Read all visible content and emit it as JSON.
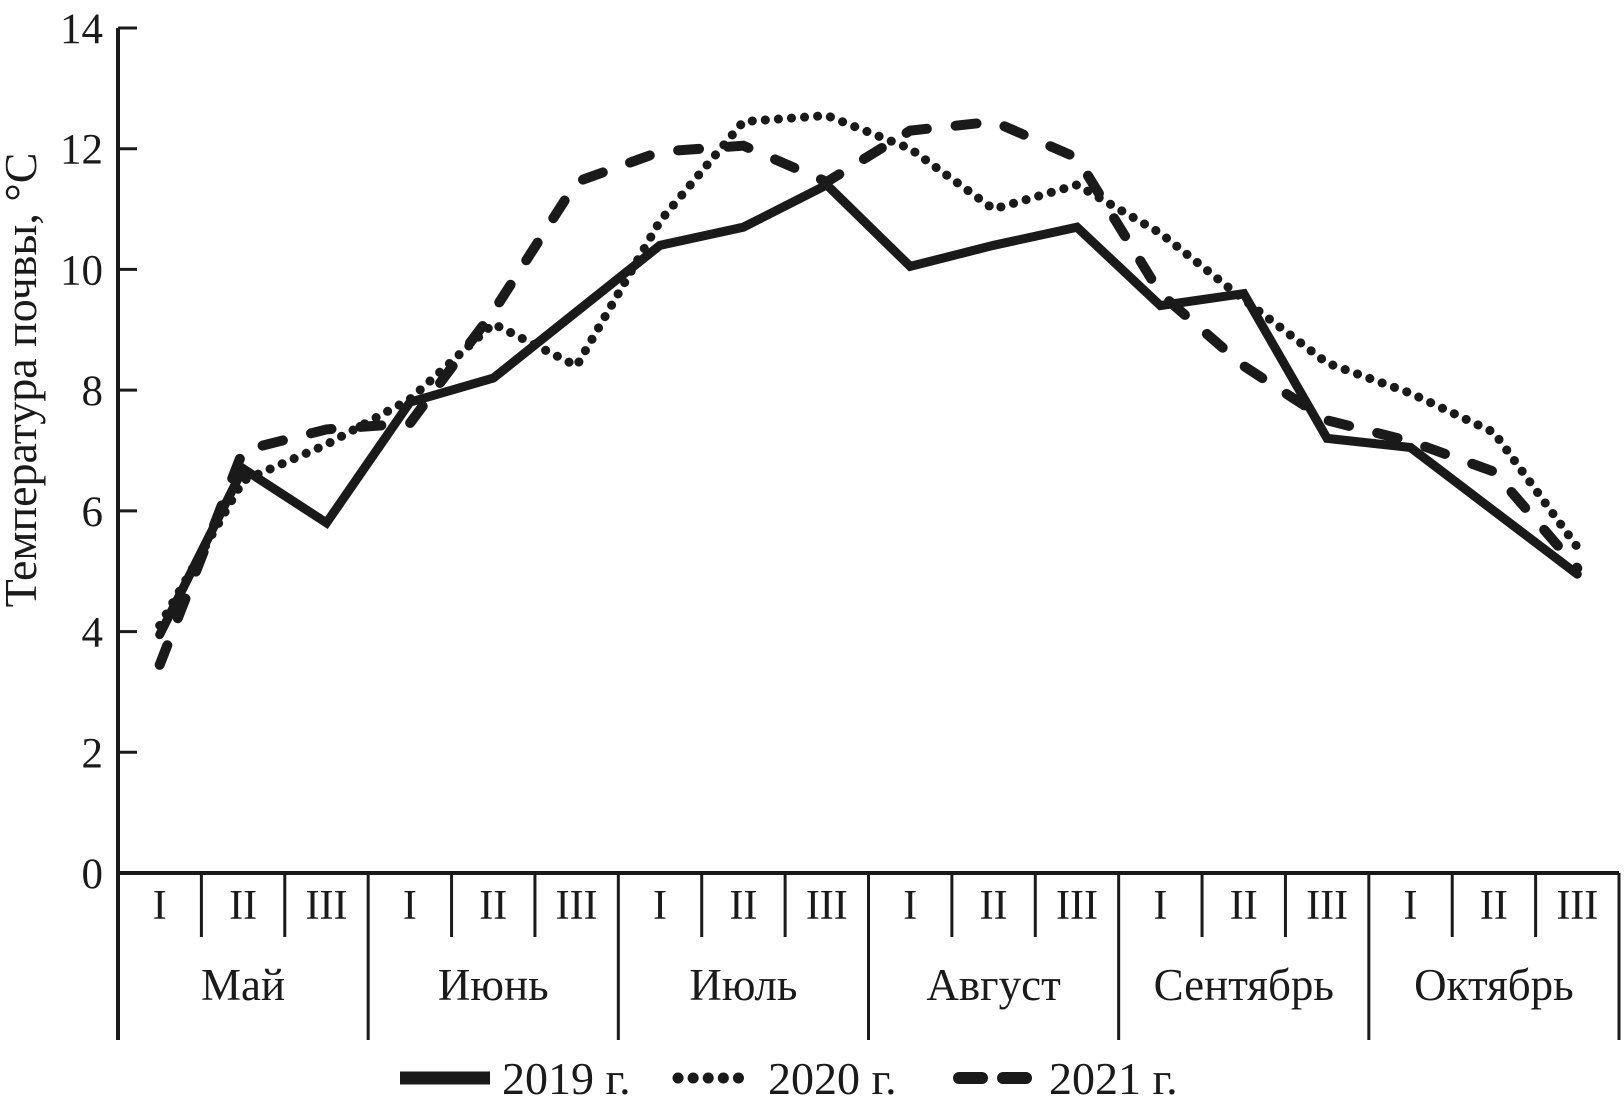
{
  "figure": {
    "background": "#ffffff",
    "ink_color": "#1a1a1a"
  },
  "legend": {
    "items": [
      {
        "label": "2019 г.",
        "style": "solid"
      },
      {
        "label": "2020 г.",
        "style": "dotted"
      },
      {
        "label": "2021 г.",
        "style": "dashed"
      }
    ]
  },
  "chart_data": {
    "type": "line",
    "title": "",
    "xlabel": "",
    "ylabel": "Температура почвы, °С",
    "ylim": [
      0,
      14
    ],
    "yticks": [
      0,
      2,
      4,
      6,
      8,
      10,
      12,
      14
    ],
    "grid": false,
    "legend_position": "bottom",
    "months": [
      "Май",
      "Июнь",
      "Июль",
      "Август",
      "Сентябрь",
      "Октябрь"
    ],
    "decades_per_month": [
      "I",
      "II",
      "III"
    ],
    "decade_row": [
      "I",
      "II",
      "III",
      "I",
      "II",
      "III",
      "I",
      "II",
      "III",
      "I",
      "II",
      "III",
      "I",
      "II",
      "III",
      "I",
      "II",
      "III"
    ],
    "categories": [
      "Май I",
      "Май II",
      "Май III",
      "Июнь I",
      "Июнь II",
      "Июнь III",
      "Июль I",
      "Июль II",
      "Июль III",
      "Август I",
      "Август II",
      "Август III",
      "Сентябрь I",
      "Сентябрь II",
      "Сентябрь III",
      "Октябрь I",
      "Октябрь II",
      "Октябрь III"
    ],
    "series": [
      {
        "name": "2019 г.",
        "style": "solid",
        "values": [
          3.95,
          6.7,
          5.8,
          7.8,
          8.2,
          9.3,
          10.4,
          10.7,
          11.4,
          10.05,
          10.4,
          10.7,
          9.4,
          9.6,
          7.2,
          7.05,
          6.0,
          4.95
        ]
      },
      {
        "name": "2020 г.",
        "style": "dotted",
        "values": [
          4.1,
          6.5,
          7.1,
          7.85,
          9.1,
          8.4,
          10.8,
          12.45,
          12.55,
          12.0,
          11.0,
          11.4,
          10.6,
          9.5,
          8.45,
          7.95,
          7.3,
          5.4
        ]
      },
      {
        "name": "2021 г.",
        "style": "dashed",
        "values": [
          3.45,
          7.0,
          7.35,
          7.45,
          9.3,
          11.45,
          11.95,
          12.05,
          11.45,
          12.3,
          12.45,
          11.85,
          9.6,
          8.4,
          7.5,
          7.15,
          6.65,
          5.05
        ]
      }
    ]
  }
}
